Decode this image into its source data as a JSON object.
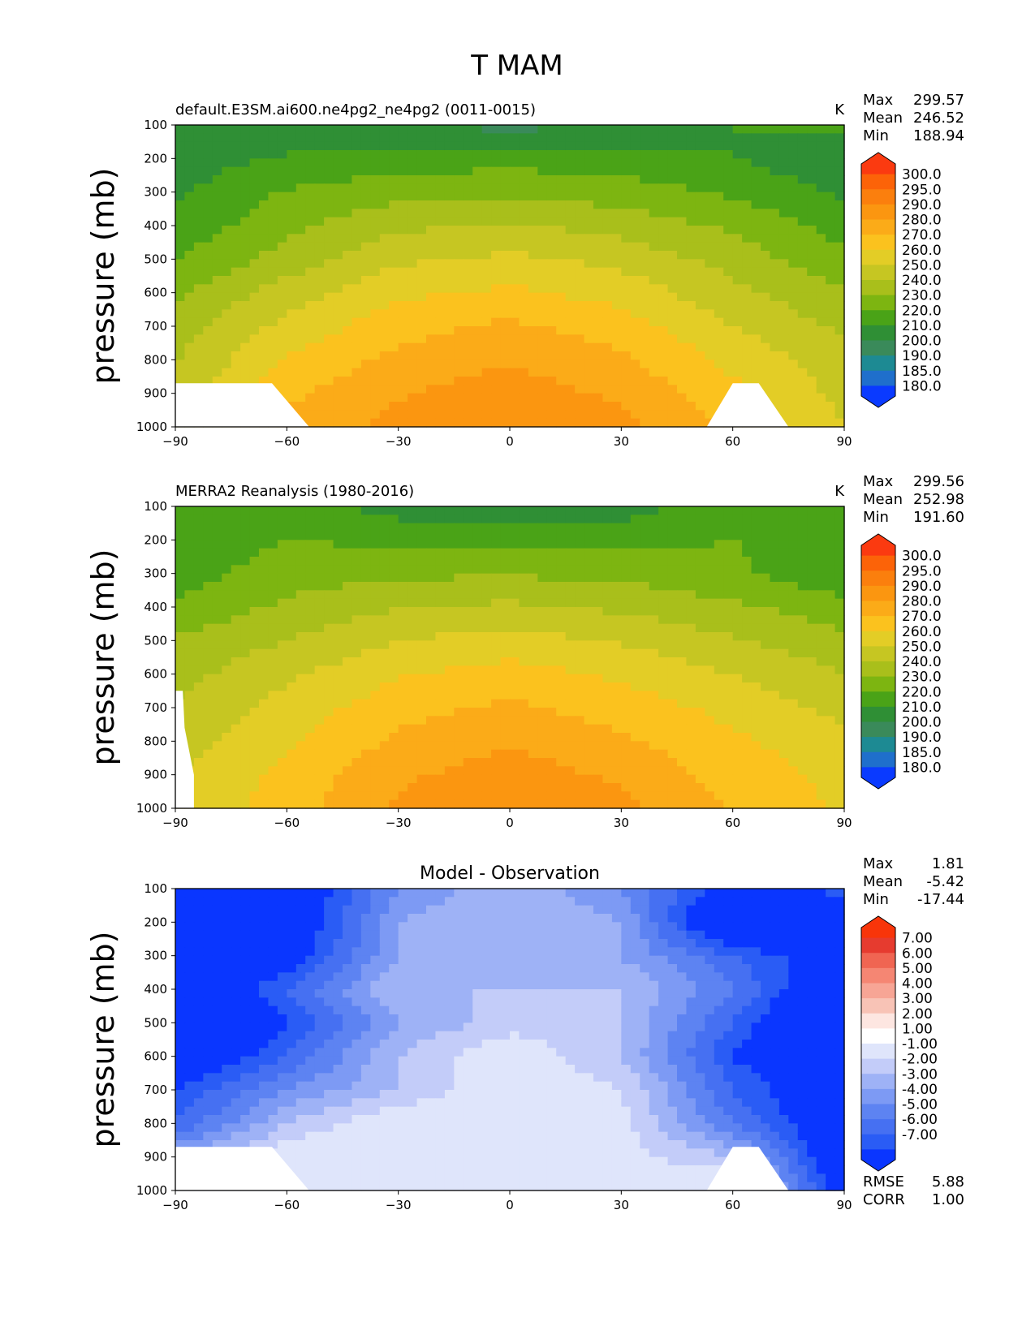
{
  "figure_title": "T MAM",
  "colors": {
    "main_levels": [
      "#0a3aff",
      "#1f6fcc",
      "#1d8a93",
      "#3a8a5a",
      "#2f8f35",
      "#4aa317",
      "#7db511",
      "#a9bf1b",
      "#c6c622",
      "#e3cd26",
      "#fbc21e",
      "#fbab18",
      "#fb9610",
      "#fb7f0d",
      "#fc6308",
      "#fb3a10"
    ],
    "diff_levels": [
      "#0a36ff",
      "#2a5cf5",
      "#4670f2",
      "#5d83f2",
      "#7d9af4",
      "#9eb2f6",
      "#c3ccf9",
      "#dfe5fb",
      "#ffffff",
      "#fde6e1",
      "#f8c3b6",
      "#f7a595",
      "#f58673",
      "#f06552",
      "#e63b2f",
      "#f8350a"
    ]
  },
  "chart_data": [
    {
      "type": "heatmap",
      "title": "default.E3SM.ai600.ne4pg2_ne4pg2 (0011-0015)",
      "units": "K",
      "ylabel": "pressure (mb)",
      "xlabel": "",
      "xlim": [
        -90,
        90
      ],
      "ylim": [
        1000,
        100
      ],
      "xticks": [
        "−90",
        "−60",
        "−30",
        "0",
        "30",
        "60",
        "90"
      ],
      "yticks": [
        "100",
        "200",
        "300",
        "400",
        "500",
        "600",
        "700",
        "800",
        "900",
        "1000"
      ],
      "x": [
        -90,
        -60,
        -30,
        0,
        30,
        60,
        90
      ],
      "y": [
        100,
        200,
        300,
        400,
        500,
        600,
        700,
        800,
        900,
        1000
      ],
      "values": [
        [
          202,
          203,
          200,
          197,
          200,
          210,
          212
        ],
        [
          205,
          211,
          215,
          216,
          214,
          210,
          203
        ],
        [
          208,
          221,
          226,
          228,
          225,
          218,
          208
        ],
        [
          213,
          227,
          238,
          241,
          236,
          228,
          216
        ],
        [
          220,
          234,
          248,
          252,
          247,
          236,
          222
        ],
        [
          228,
          245,
          258,
          262,
          256,
          243,
          231
        ],
        [
          235,
          253,
          266,
          272,
          265,
          250,
          238
        ],
        [
          239,
          261,
          273,
          279,
          272,
          257,
          244
        ],
        [
          243,
          268,
          279,
          285,
          278,
          263,
          247
        ],
        [
          247,
          273,
          283,
          291,
          283,
          268,
          250
        ]
      ],
      "stats": [
        {
          "label": "Max",
          "value": "299.57"
        },
        {
          "label": "Mean",
          "value": "246.52"
        },
        {
          "label": "Min",
          "value": "188.94"
        }
      ],
      "colorbar": {
        "labels": [
          "300.0",
          "295.0",
          "290.0",
          "280.0",
          "270.0",
          "260.0",
          "250.0",
          "240.0",
          "230.0",
          "220.0",
          "210.0",
          "200.0",
          "190.0",
          "185.0",
          "180.0"
        ],
        "levels": [
          180,
          185,
          190,
          200,
          210,
          220,
          230,
          240,
          250,
          260,
          270,
          280,
          290,
          295,
          300
        ]
      }
    },
    {
      "type": "heatmap",
      "title": "MERRA2 Reanalysis (1980-2016)",
      "units": "K",
      "ylabel": "pressure (mb)",
      "xlabel": "",
      "xlim": [
        -90,
        90
      ],
      "ylim": [
        1000,
        100
      ],
      "xticks": [
        "−90",
        "−60",
        "−30",
        "0",
        "30",
        "60",
        "90"
      ],
      "yticks": [
        "100",
        "200",
        "300",
        "400",
        "500",
        "600",
        "700",
        "800",
        "900",
        "1000"
      ],
      "x": [
        -90,
        -60,
        -30,
        0,
        30,
        60,
        90
      ],
      "y": [
        100,
        200,
        300,
        400,
        500,
        600,
        700,
        800,
        900,
        1000
      ],
      "values": [
        [
          212,
          216,
          205,
          198,
          205,
          216,
          216
        ],
        [
          214,
          220,
          218,
          218,
          217,
          220,
          215
        ],
        [
          215,
          225,
          228,
          229,
          227,
          222,
          212
        ],
        [
          222,
          232,
          239,
          242,
          238,
          232,
          224
        ],
        [
          231,
          240,
          250,
          254,
          249,
          241,
          233
        ],
        [
          236,
          248,
          259,
          264,
          258,
          250,
          240
        ],
        [
          241,
          254,
          266,
          272,
          265,
          257,
          247
        ],
        [
          245,
          258,
          272,
          279,
          272,
          262,
          253
        ],
        [
          249,
          263,
          278,
          285,
          278,
          266,
          257
        ],
        [
          251,
          265,
          282,
          291,
          283,
          269,
          258
        ]
      ],
      "stats": [
        {
          "label": "Max",
          "value": "299.56"
        },
        {
          "label": "Mean",
          "value": "252.98"
        },
        {
          "label": "Min",
          "value": "191.60"
        }
      ],
      "colorbar": {
        "labels": [
          "300.0",
          "295.0",
          "290.0",
          "280.0",
          "270.0",
          "260.0",
          "250.0",
          "240.0",
          "230.0",
          "220.0",
          "210.0",
          "200.0",
          "190.0",
          "185.0",
          "180.0"
        ],
        "levels": [
          180,
          185,
          190,
          200,
          210,
          220,
          230,
          240,
          250,
          260,
          270,
          280,
          290,
          295,
          300
        ]
      }
    },
    {
      "type": "heatmap",
      "title": "Model - Observation",
      "units": "",
      "ylabel": "pressure (mb)",
      "xlabel": "",
      "xlim": [
        -90,
        90
      ],
      "ylim": [
        1000,
        100
      ],
      "xticks": [
        "−90",
        "−60",
        "−30",
        "0",
        "30",
        "60",
        "90"
      ],
      "yticks": [
        "100",
        "200",
        "300",
        "400",
        "500",
        "600",
        "700",
        "800",
        "900",
        "1000"
      ],
      "x": [
        -90,
        -60,
        -30,
        0,
        30,
        60,
        90
      ],
      "y": [
        100,
        200,
        300,
        400,
        500,
        600,
        700,
        800,
        900,
        1000
      ],
      "values": [
        [
          -10,
          -9,
          -4,
          -2,
          -4,
          -8,
          -6
        ],
        [
          -9,
          -9,
          -3,
          -2,
          -3,
          -10,
          -12
        ],
        [
          -9,
          -8,
          -3,
          -2,
          -3,
          -6,
          -8
        ],
        [
          -9,
          -6,
          -2,
          -2,
          -2,
          -5,
          -9
        ],
        [
          -11,
          -7,
          -3,
          -1.5,
          -2,
          -6,
          -11
        ],
        [
          -9,
          -6,
          -2,
          0,
          -2,
          -7,
          -10
        ],
        [
          -7,
          -4,
          -2,
          0,
          -1,
          -6,
          -9
        ],
        [
          -6,
          -2,
          0,
          0,
          -0.5,
          -5,
          -9
        ],
        [
          -3,
          0,
          0,
          0,
          -0.5,
          -2,
          -9
        ],
        [
          0,
          0.5,
          0,
          0,
          0,
          0.5,
          -8
        ]
      ],
      "stats": [
        {
          "label": "Max",
          "value": "1.81"
        },
        {
          "label": "Mean",
          "value": "-5.42"
        },
        {
          "label": "Min",
          "value": "-17.44"
        }
      ],
      "extra_stats": [
        {
          "label": "RMSE",
          "value": "5.88"
        },
        {
          "label": "CORR",
          "value": "1.00"
        }
      ],
      "colorbar": {
        "labels": [
          "7.00",
          "6.00",
          "5.00",
          "4.00",
          "3.00",
          "2.00",
          "1.00",
          "-1.00",
          "-2.00",
          "-3.00",
          "-4.00",
          "-5.00",
          "-6.00",
          "-7.00"
        ],
        "levels": [
          -7,
          -6,
          -5,
          -4,
          -3,
          -2,
          -1,
          1,
          2,
          3,
          4,
          5,
          6,
          7
        ]
      }
    }
  ]
}
